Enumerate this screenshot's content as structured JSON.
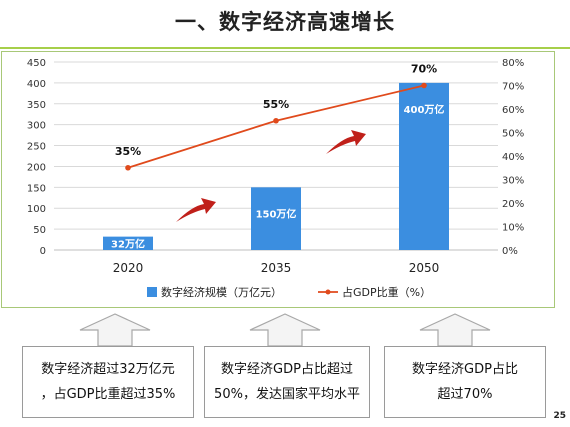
{
  "title": "一、数字经济高速增长",
  "page_number": "25",
  "chart_data": {
    "type": "bar",
    "categories": [
      "2020",
      "2035",
      "2050"
    ],
    "series": [
      {
        "name": "数字经济规模（万亿元）",
        "kind": "bar",
        "axis": "left",
        "color": "#3b8ee0",
        "values": [
          32,
          150,
          400
        ],
        "labels": [
          "32万亿",
          "150万亿",
          "400万亿"
        ]
      },
      {
        "name": "占GDP比重（%）",
        "kind": "line",
        "axis": "right",
        "color": "#e04a1c",
        "values": [
          35,
          55,
          70
        ],
        "labels": [
          "35%",
          "55%",
          "70%"
        ]
      }
    ],
    "y_left": {
      "min": 0,
      "max": 450,
      "ticks": [
        "0",
        "50",
        "100",
        "150",
        "200",
        "250",
        "300",
        "350",
        "400",
        "450"
      ]
    },
    "y_right": {
      "min": 0,
      "max": 80,
      "ticks": [
        "0%",
        "10%",
        "20%",
        "30%",
        "40%",
        "50%",
        "60%",
        "70%",
        "80%"
      ]
    },
    "grid": true,
    "legend_position": "bottom",
    "arrow_color": "#c0201a"
  },
  "summary_boxes": [
    "数字经济超过32万亿元\n，占GDP比重超过35%",
    "数字经济GDP占比超过\n50%，发达国家平均水平",
    "数字经济GDP占比\n超过70%"
  ]
}
